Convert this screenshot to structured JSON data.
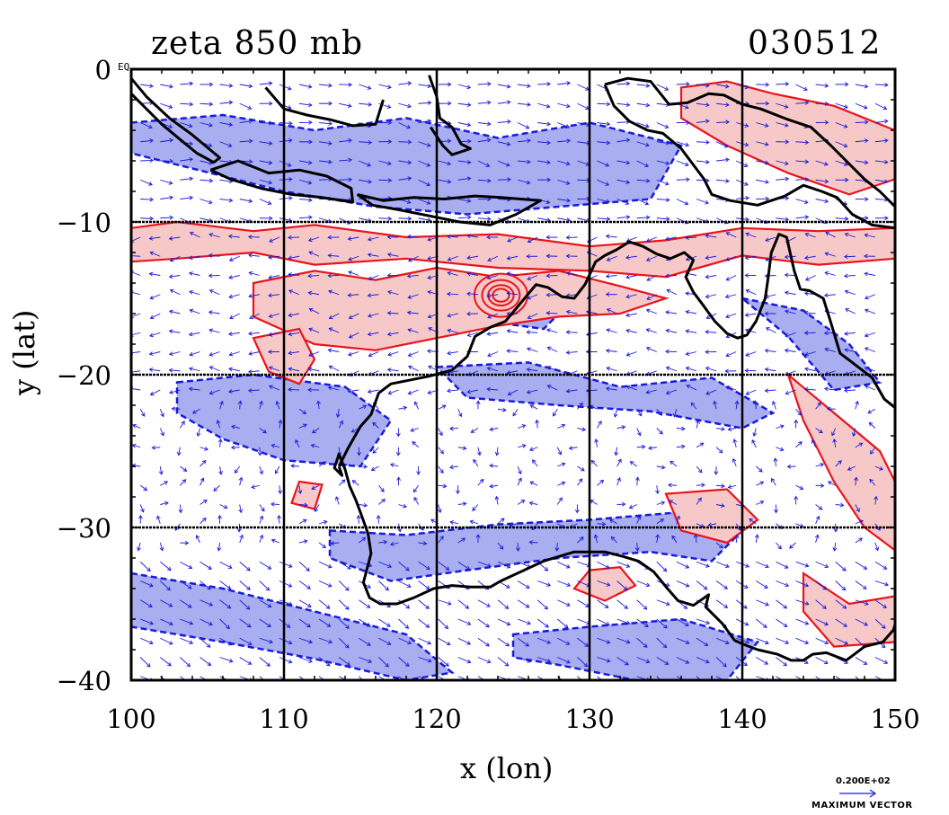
{
  "title": {
    "field": "zeta 850 mb",
    "date": "030512"
  },
  "axes": {
    "x_label": "x (lon)",
    "y_label": "y (lat)",
    "x_ticks": [
      "100",
      "110",
      "120",
      "130",
      "140",
      "150"
    ],
    "y_ticks": [
      "0",
      "−10",
      "−20",
      "−30",
      "−40"
    ],
    "corner_label": "EQ"
  },
  "legend": {
    "vector_value": "0.200E+02",
    "vector_caption": "MAXIMUM VECTOR"
  },
  "colors": {
    "positive_fill": "#f7c8c8",
    "positive_line": "#e8141c",
    "negative_fill": "#a8aef0",
    "negative_line": "#1a1adc",
    "coast": "#000000",
    "vector": "#1a1adc"
  },
  "chart_data": {
    "type": "map",
    "x": [
      100,
      150
    ],
    "y": [
      -40,
      0
    ],
    "grid": true,
    "positive_regions": [
      {
        "name": "band-10",
        "lon": [
          100,
          103,
          108,
          112,
          118,
          124,
          130,
          135,
          140,
          145,
          150,
          150,
          145,
          140,
          135,
          130,
          124,
          118,
          112,
          108,
          103,
          100
        ],
        "lat": [
          -10.4,
          -10.0,
          -10.6,
          -10.2,
          -11.0,
          -10.8,
          -11.6,
          -11.2,
          -10.4,
          -10.6,
          -10.4,
          -12.4,
          -12.8,
          -12.2,
          -13.6,
          -13.2,
          -13.0,
          -12.4,
          -12.8,
          -12.0,
          -12.4,
          -12.6
        ]
      },
      {
        "name": "band-16",
        "lon": [
          108,
          112,
          116,
          120,
          124,
          128,
          132,
          135,
          132,
          128,
          124,
          120,
          116,
          112,
          108
        ],
        "lat": [
          -14.0,
          -13.2,
          -13.8,
          -13.0,
          -13.6,
          -13.2,
          -14.2,
          -15.0,
          -16.0,
          -16.2,
          -16.8,
          -17.6,
          -18.4,
          -18.0,
          -16.2
        ]
      },
      {
        "name": "wa-west",
        "lon": [
          108,
          111,
          112,
          111,
          109
        ],
        "lat": [
          -17.6,
          -17.0,
          -19.0,
          -20.6,
          -19.8
        ]
      },
      {
        "name": "png",
        "lon": [
          136,
          139,
          142,
          146,
          150,
          150,
          147,
          143,
          139,
          136
        ],
        "lat": [
          -1.2,
          -0.8,
          -1.6,
          -2.4,
          -4.0,
          -7.2,
          -8.2,
          -6.8,
          -5.0,
          -3.2
        ]
      },
      {
        "name": "east-aus",
        "lon": [
          143,
          146,
          149,
          150,
          150,
          148,
          146,
          144
        ],
        "lat": [
          -20.0,
          -22.5,
          -25.0,
          -27.0,
          -31.5,
          -30.0,
          -27.0,
          -23.0
        ]
      },
      {
        "name": "se-aus",
        "lon": [
          144,
          147,
          150,
          150,
          146,
          144
        ],
        "lat": [
          -33.0,
          -35.0,
          -34.5,
          -37.5,
          -37.8,
          -35.5
        ]
      },
      {
        "name": "bight-east",
        "lon": [
          130,
          132,
          133,
          131,
          129
        ],
        "lat": [
          -32.8,
          -32.6,
          -33.8,
          -34.8,
          -34.0
        ]
      },
      {
        "name": "central-south",
        "lon": [
          135,
          139,
          141,
          139,
          136
        ],
        "lat": [
          -27.8,
          -27.5,
          -29.5,
          -31.0,
          -30.2
        ]
      },
      {
        "name": "sw-small",
        "lon": [
          111,
          112.5,
          112,
          110.5
        ],
        "lat": [
          -27.0,
          -27.2,
          -28.8,
          -28.4
        ]
      }
    ],
    "negative_regions": [
      {
        "name": "indian-ocean",
        "lon": [
          103,
          108,
          114,
          117,
          115,
          110,
          106,
          103
        ],
        "lat": [
          -20.5,
          -20.0,
          -20.8,
          -23.0,
          -26.0,
          -25.6,
          -24.2,
          -22.5
        ]
      },
      {
        "name": "south-ocean",
        "lon": [
          100,
          106,
          112,
          118,
          121,
          118,
          112,
          106,
          100
        ],
        "lat": [
          -33.0,
          -34.0,
          -35.5,
          -37.0,
          -39.5,
          -40.0,
          -38.6,
          -37.5,
          -36.5
        ]
      },
      {
        "name": "bight",
        "lon": [
          113,
          118,
          124,
          130,
          136,
          140,
          138,
          134,
          128,
          122,
          117,
          113
        ],
        "lat": [
          -30.2,
          -30.5,
          -29.8,
          -29.5,
          -29.0,
          -30.2,
          -32.2,
          -31.6,
          -32.0,
          -32.8,
          -33.5,
          -32.0
        ]
      },
      {
        "name": "south-lower",
        "lon": [
          125,
          130,
          136,
          141,
          139,
          133,
          128,
          125
        ],
        "lat": [
          -37.0,
          -36.5,
          -36.0,
          -37.5,
          -40.0,
          -40.0,
          -39.0,
          -38.5
        ]
      },
      {
        "name": "indonesia",
        "lon": [
          100,
          106,
          112,
          118,
          124,
          130,
          136,
          134,
          128,
          122,
          116,
          110,
          104,
          100
        ],
        "lat": [
          -3.5,
          -3.0,
          -4.0,
          -3.2,
          -4.5,
          -3.5,
          -5.0,
          -8.5,
          -9.0,
          -9.5,
          -9.0,
          -8.0,
          -6.5,
          -5.5
        ]
      },
      {
        "name": "band-22",
        "lon": [
          120,
          126,
          132,
          138,
          142,
          140,
          134,
          128,
          122
        ],
        "lat": [
          -19.5,
          -19.2,
          -20.8,
          -20.2,
          -22.5,
          -23.5,
          -22.4,
          -22.0,
          -21.5
        ]
      },
      {
        "name": "kimberley",
        "lon": [
          123,
          126,
          128,
          127,
          124
        ],
        "lat": [
          -14.5,
          -14.8,
          -16.0,
          -17.0,
          -16.6
        ]
      },
      {
        "name": "north-east",
        "lon": [
          140,
          144,
          147,
          149,
          146,
          143
        ],
        "lat": [
          -15.0,
          -15.8,
          -18.0,
          -20.5,
          -21.0,
          -17.5
        ]
      }
    ],
    "coastlines": [
      {
        "name": "australia",
        "lon": [
          113.6,
          114.2,
          115.0,
          115.7,
          116.2,
          117.0,
          118.0,
          119.5,
          121.0,
          122.0,
          122.5,
          123.5,
          124.5,
          125.5,
          126.5,
          127.3,
          128.2,
          129.0,
          129.7,
          130.4,
          131.0,
          131.8,
          132.6,
          133.5,
          134.4,
          135.3,
          136.2,
          136.8,
          136.3,
          136.8,
          137.4,
          138.2,
          139.0,
          139.7,
          140.3,
          140.9,
          141.5,
          141.7,
          141.9,
          142.4,
          142.9,
          143.4,
          143.8,
          144.4,
          145.3,
          145.8,
          146.4,
          147.2,
          148.5,
          149.3,
          150.3,
          151.5,
          152.5,
          153.2,
          153.6,
          153.4,
          152.8,
          152.0,
          151.2,
          150.7,
          150.2,
          149.9,
          149.2,
          148.0,
          146.8,
          145.5,
          144.6,
          144.0,
          143.2,
          142.3,
          141.0,
          140.2,
          139.5,
          138.7,
          138.0,
          137.6,
          137.8,
          136.8,
          135.8,
          135.1,
          134.2,
          133.2,
          132.2,
          131.0,
          129.0,
          127.0,
          125.5,
          124.2,
          123.5,
          122.2,
          121.0,
          119.8,
          118.5,
          117.4,
          116.3,
          115.6,
          115.2,
          115.7,
          115.5,
          115.0,
          114.7,
          114.3,
          114.0,
          113.6,
          113.3,
          113.8,
          113.6
        ],
        "lat": [
          -26.0,
          -24.8,
          -23.4,
          -22.6,
          -21.2,
          -20.6,
          -20.4,
          -20.1,
          -19.7,
          -18.8,
          -17.5,
          -16.9,
          -16.5,
          -15.3,
          -14.1,
          -14.3,
          -14.9,
          -15.0,
          -14.1,
          -12.6,
          -12.2,
          -11.8,
          -11.3,
          -11.6,
          -12.1,
          -12.4,
          -12.0,
          -12.5,
          -13.6,
          -14.6,
          -15.4,
          -16.5,
          -17.3,
          -17.6,
          -17.4,
          -16.5,
          -15.0,
          -13.6,
          -12.0,
          -10.8,
          -11.0,
          -13.2,
          -14.4,
          -14.5,
          -15.0,
          -16.6,
          -18.6,
          -19.2,
          -20.2,
          -21.6,
          -22.4,
          -23.8,
          -25.3,
          -26.6,
          -28.4,
          -29.8,
          -31.2,
          -32.6,
          -33.6,
          -34.7,
          -35.6,
          -36.7,
          -37.5,
          -37.8,
          -38.7,
          -38.2,
          -38.3,
          -38.7,
          -38.7,
          -38.3,
          -38.0,
          -37.7,
          -37.4,
          -36.3,
          -35.6,
          -35.2,
          -34.4,
          -35.1,
          -34.8,
          -34.0,
          -32.9,
          -32.2,
          -31.9,
          -31.6,
          -31.6,
          -32.2,
          -32.9,
          -33.5,
          -33.9,
          -33.9,
          -33.8,
          -34.0,
          -34.6,
          -35.0,
          -35.0,
          -34.6,
          -33.6,
          -31.7,
          -30.4,
          -29.0,
          -28.2,
          -27.3,
          -26.2,
          -25.2,
          -26.1,
          -26.6,
          -26.0
        ]
      },
      {
        "name": "tasmania",
        "lon": [
          144.6,
          145.5,
          146.6,
          147.6,
          148.3,
          148.1,
          147.3,
          146.7,
          145.9,
          145.2,
          144.6
        ],
        "lat": [
          -40.7,
          -40.8,
          -41.1,
          -40.9,
          -41.1,
          -42.2,
          -43.1,
          -43.6,
          -43.4,
          -42.3,
          -40.7
        ]
      },
      {
        "name": "sumatra",
        "lon": [
          100.0,
          101.0,
          102.5,
          104.0,
          105.8,
          105.4,
          104.3,
          103.2,
          102.0,
          100.8,
          100.0
        ],
        "lat": [
          -0.6,
          -1.8,
          -3.2,
          -4.3,
          -5.8,
          -6.1,
          -5.5,
          -4.6,
          -3.6,
          -2.4,
          -1.6
        ]
      },
      {
        "name": "java",
        "lon": [
          105.2,
          107.0,
          109.0,
          111.0,
          112.8,
          114.4,
          114.5,
          112.5,
          110.5,
          108.5,
          106.5,
          105.2
        ],
        "lat": [
          -6.6,
          -6.0,
          -6.8,
          -6.6,
          -7.0,
          -7.8,
          -8.7,
          -8.4,
          -8.2,
          -7.8,
          -7.2,
          -6.6
        ]
      },
      {
        "name": "borneo-south",
        "lon": [
          108.8,
          110.0,
          111.5,
          113.0,
          114.5,
          116.0,
          116.5
        ],
        "lat": [
          -1.2,
          -2.6,
          -3.0,
          -3.3,
          -3.7,
          -3.6,
          -2.0
        ]
      },
      {
        "name": "lesser-sunda",
        "lon": [
          114.8,
          116.5,
          118.5,
          120.5,
          122.5,
          124.2,
          125.5,
          126.8,
          125.2,
          123.5,
          121.5,
          119.5,
          117.5,
          115.8,
          114.8
        ],
        "lat": [
          -8.2,
          -8.6,
          -8.4,
          -8.5,
          -8.3,
          -8.4,
          -8.5,
          -8.6,
          -9.5,
          -10.2,
          -10.0,
          -9.6,
          -9.2,
          -8.9,
          -8.2
        ]
      },
      {
        "name": "sulawesi",
        "lon": [
          119.5,
          120.0,
          120.2,
          121.0,
          121.6,
          122.2,
          121.0,
          120.4,
          119.6
        ],
        "lat": [
          -0.4,
          -1.8,
          -3.2,
          -3.8,
          -4.9,
          -5.2,
          -5.6,
          -5.0,
          -3.8
        ]
      },
      {
        "name": "new-guinea",
        "lon": [
          131.0,
          132.5,
          134.0,
          135.2,
          136.4,
          137.8,
          138.8,
          140.0,
          141.2,
          143.0,
          144.5,
          145.8,
          147.0,
          148.0,
          149.0,
          150.0,
          150.0,
          148.5,
          147.2,
          146.2,
          145.2,
          144.0,
          142.8,
          141.0,
          139.2,
          138.0,
          137.5,
          136.0,
          134.8,
          133.8,
          132.6,
          131.6,
          131.0
        ],
        "lat": [
          -1.0,
          -0.6,
          -0.8,
          -2.3,
          -2.2,
          -1.6,
          -1.7,
          -2.3,
          -2.6,
          -3.3,
          -3.8,
          -5.0,
          -6.2,
          -7.2,
          -8.0,
          -9.0,
          -10.4,
          -10.2,
          -9.5,
          -8.4,
          -8.0,
          -7.6,
          -8.3,
          -8.9,
          -8.6,
          -8.2,
          -7.2,
          -5.2,
          -4.2,
          -4.0,
          -3.4,
          -2.4,
          -1.0
        ]
      }
    ],
    "wind": {
      "vector_max": 20,
      "vector_max_text": "0.200E+02",
      "style": "arrows"
    }
  }
}
